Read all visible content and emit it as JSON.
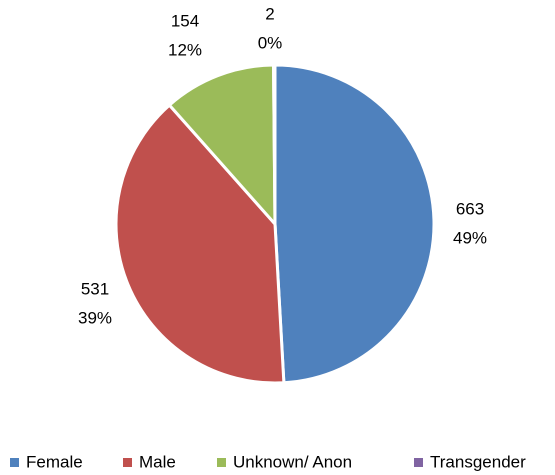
{
  "chart_data": {
    "type": "pie",
    "categories": [
      "Female",
      "Male",
      "Unknown/ Anon",
      "Transgender"
    ],
    "values": [
      663,
      531,
      154,
      2
    ],
    "percent_labels": [
      "49%",
      "39%",
      "12%",
      "0%"
    ],
    "colors": [
      "#4f81bd",
      "#c0504d",
      "#9bbb59",
      "#8064a2"
    ],
    "legend": "bottom"
  }
}
